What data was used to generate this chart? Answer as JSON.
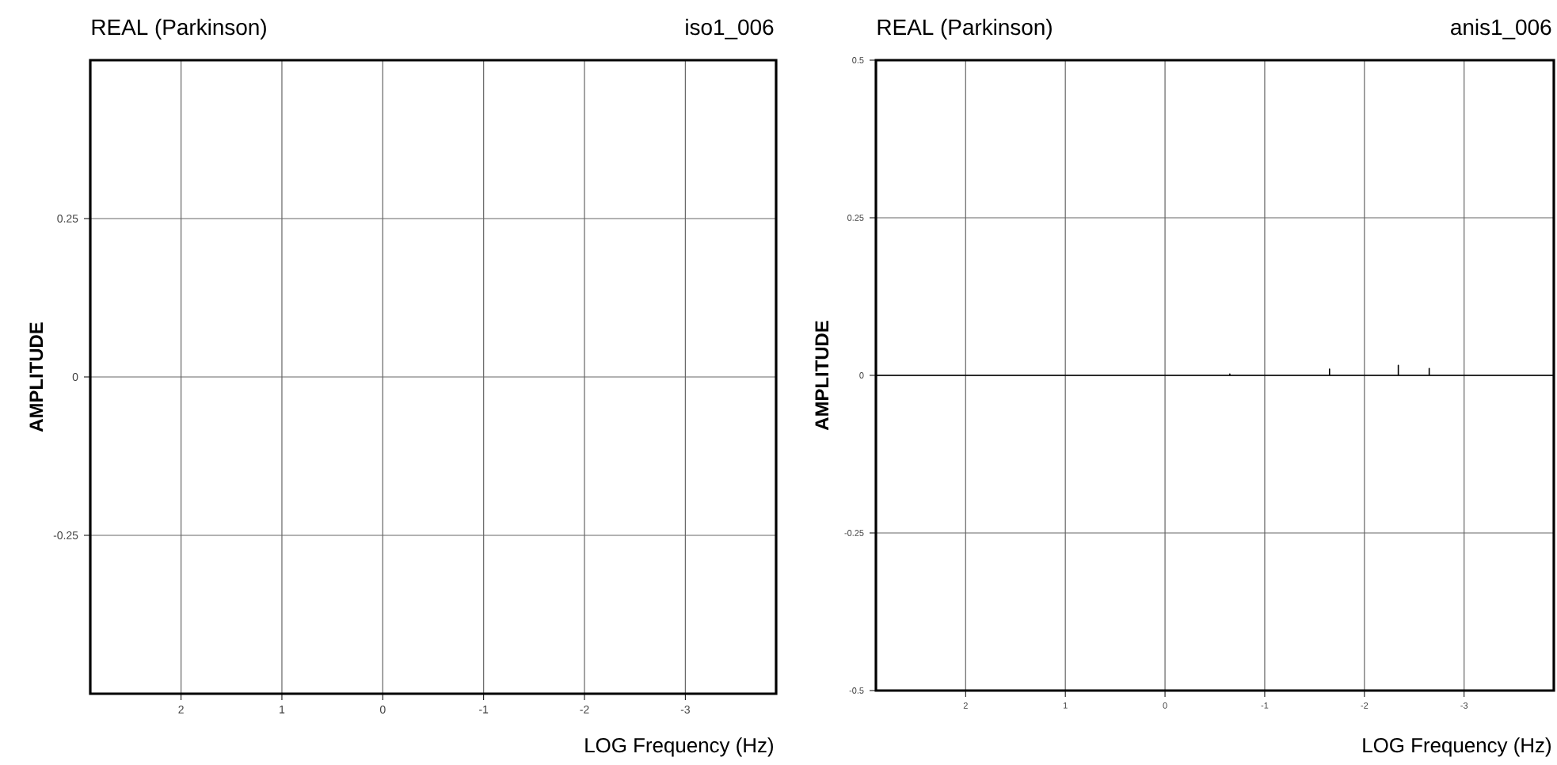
{
  "chart_data": [
    {
      "type": "line",
      "title": "REAL (Parkinson)",
      "subtitle": "iso1_006",
      "xlabel": "LOG Frequency (Hz)",
      "ylabel": "AMPLITUDE",
      "xlim": [
        2.9,
        -3.9
      ],
      "xticks": [
        2,
        1,
        0,
        -1,
        -2,
        -3
      ],
      "ylim": [
        -0.5,
        0.5
      ],
      "yticks": [
        0.25,
        0,
        -0.25
      ],
      "grid": true
    },
    {
      "type": "line",
      "title": "REAL (Parkinson)",
      "subtitle": "anis1_006",
      "xlabel": "LOG Frequency (Hz)",
      "ylabel": "AMPLITUDE",
      "xlim": [
        2.9,
        -3.9
      ],
      "xticks": [
        2,
        1,
        0,
        -1,
        -2,
        -3
      ],
      "ylim": [
        -0.5,
        0.5
      ],
      "yticks": [
        0.5,
        0.25,
        0,
        -0.25,
        -0.5
      ],
      "grid": true,
      "series": [
        {
          "color": "#000000",
          "x": [
            2.9,
            -0.65,
            -0.65,
            -0.65,
            -1.65,
            -1.65,
            -1.65,
            -2.34,
            -2.34,
            -2.34,
            -2.65,
            -2.65,
            -2.65,
            -3.9
          ],
          "values": [
            0,
            0,
            0.002,
            0,
            0,
            0.01,
            0,
            0,
            0.016,
            0,
            0,
            0.011,
            0,
            0
          ]
        }
      ]
    }
  ]
}
